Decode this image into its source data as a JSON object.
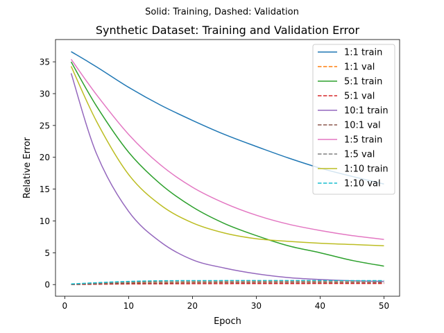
{
  "chart_data": {
    "type": "line",
    "suptitle": "Solid: Training, Dashed: Validation",
    "title": "Synthetic Dataset: Training and Validation Error",
    "xlabel": "Epoch",
    "ylabel": "Relative Error",
    "xlim": [
      -1.45,
      52.45
    ],
    "ylim": [
      -1.83,
      38.5
    ],
    "xticks": [
      0,
      10,
      20,
      30,
      40,
      50
    ],
    "yticks": [
      0,
      5,
      10,
      15,
      20,
      25,
      30,
      35
    ],
    "grid": false,
    "legend_position": "top-right",
    "series": [
      {
        "name": "1:1 train",
        "style": "solid",
        "color": "#1f77b4",
        "x": [
          1,
          5,
          10,
          15,
          20,
          25,
          30,
          35,
          40,
          45,
          50
        ],
        "y": [
          36.6,
          34.2,
          31.0,
          28.2,
          25.8,
          23.6,
          21.7,
          19.9,
          18.3,
          17.0,
          15.8
        ]
      },
      {
        "name": "1:1 val",
        "style": "dashed",
        "color": "#ff7f0e",
        "x": [
          1,
          5,
          10,
          15,
          20,
          25,
          30,
          35,
          40,
          45,
          50
        ],
        "y": [
          0.05,
          0.2,
          0.35,
          0.45,
          0.5,
          0.52,
          0.53,
          0.53,
          0.53,
          0.53,
          0.52
        ]
      },
      {
        "name": "5:1 train",
        "style": "solid",
        "color": "#2ca02c",
        "x": [
          1,
          5,
          10,
          15,
          20,
          25,
          30,
          35,
          40,
          45,
          50
        ],
        "y": [
          35.0,
          28.0,
          20.8,
          15.8,
          12.2,
          9.6,
          7.7,
          6.1,
          5.0,
          3.8,
          2.9
        ]
      },
      {
        "name": "5:1 val",
        "style": "dashed",
        "color": "#d62728",
        "x": [
          1,
          5,
          10,
          15,
          20,
          25,
          30,
          35,
          40,
          45,
          50
        ],
        "y": [
          0.0,
          0.05,
          0.1,
          0.12,
          0.14,
          0.15,
          0.16,
          0.16,
          0.17,
          0.17,
          0.17
        ]
      },
      {
        "name": "10:1 train",
        "style": "solid",
        "color": "#9467bd",
        "x": [
          1,
          5,
          10,
          15,
          20,
          25,
          30,
          35,
          40,
          45,
          50
        ],
        "y": [
          33.2,
          20.5,
          11.5,
          6.7,
          3.9,
          2.6,
          1.7,
          1.1,
          0.8,
          0.6,
          0.5
        ]
      },
      {
        "name": "10:1 val",
        "style": "dashed",
        "color": "#8c564b",
        "x": [
          1,
          5,
          10,
          15,
          20,
          25,
          30,
          35,
          40,
          45,
          50
        ],
        "y": [
          0.0,
          0.1,
          0.2,
          0.25,
          0.3,
          0.32,
          0.33,
          0.33,
          0.33,
          0.32,
          0.32
        ]
      },
      {
        "name": "1:5 train",
        "style": "solid",
        "color": "#e377c2",
        "x": [
          1,
          5,
          10,
          15,
          20,
          25,
          30,
          35,
          40,
          45,
          50
        ],
        "y": [
          35.4,
          29.8,
          23.6,
          18.8,
          15.3,
          12.8,
          10.9,
          9.5,
          8.5,
          7.7,
          7.1
        ]
      },
      {
        "name": "1:5 val",
        "style": "dashed",
        "color": "#7f7f7f",
        "x": [
          1,
          5,
          10,
          15,
          20,
          25,
          30,
          35,
          40,
          45,
          50
        ],
        "y": [
          0.05,
          0.25,
          0.4,
          0.5,
          0.55,
          0.56,
          0.57,
          0.57,
          0.57,
          0.57,
          0.56
        ]
      },
      {
        "name": "1:10 train",
        "style": "solid",
        "color": "#bcbd22",
        "x": [
          1,
          5,
          10,
          15,
          20,
          25,
          30,
          35,
          40,
          45,
          50
        ],
        "y": [
          34.3,
          25.6,
          17.3,
          12.5,
          9.7,
          8.1,
          7.2,
          6.8,
          6.5,
          6.3,
          6.1
        ]
      },
      {
        "name": "1:10 val",
        "style": "dashed",
        "color": "#17becf",
        "x": [
          1,
          5,
          10,
          15,
          20,
          25,
          30,
          35,
          40,
          45,
          50
        ],
        "y": [
          0.1,
          0.3,
          0.5,
          0.6,
          0.62,
          0.63,
          0.63,
          0.63,
          0.63,
          0.62,
          0.62
        ]
      }
    ]
  }
}
